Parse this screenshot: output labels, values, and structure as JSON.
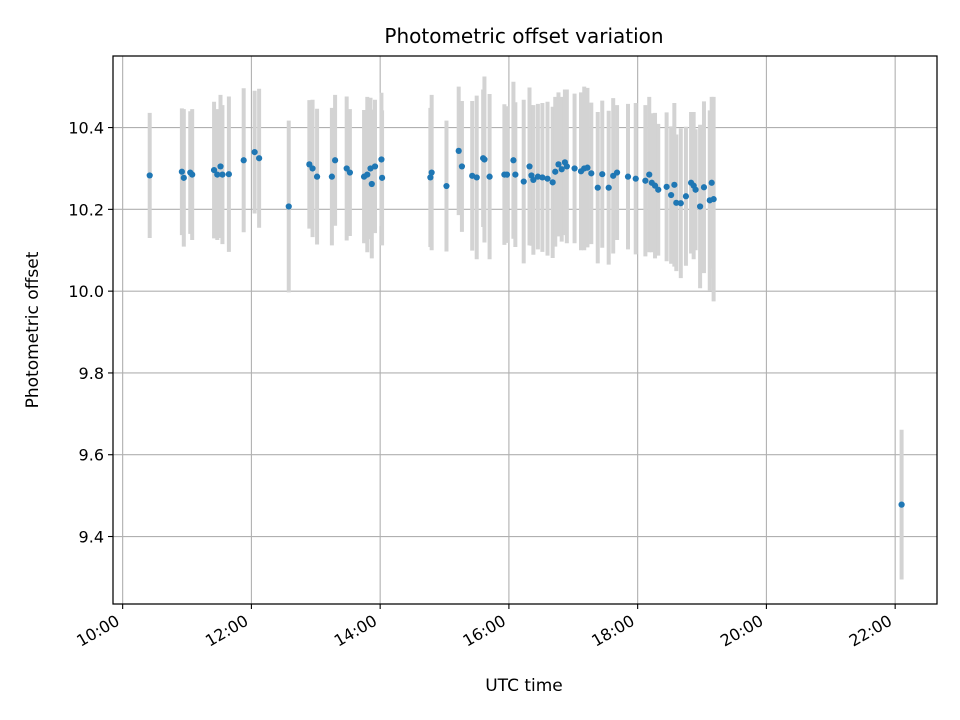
{
  "chart_data": {
    "type": "scatter",
    "title": "Photometric offset variation",
    "xlabel": "UTC time",
    "ylabel": "Photometric offset",
    "x_unit": "hours UTC",
    "xlim": [
      9.85,
      22.65
    ],
    "ylim": [
      9.235,
      10.575
    ],
    "x_ticks": [
      10,
      12,
      14,
      16,
      18,
      20,
      22
    ],
    "x_tick_labels": [
      "10:00",
      "12:00",
      "14:00",
      "16:00",
      "18:00",
      "20:00",
      "22:00"
    ],
    "y_ticks": [
      9.4,
      9.6,
      9.8,
      10.0,
      10.2,
      10.4
    ],
    "y_tick_labels": [
      "9.4",
      "9.6",
      "9.8",
      "10.0",
      "10.2",
      "10.4"
    ],
    "grid": true,
    "colors": {
      "points": "#1f77b4",
      "errorbars": "#d3d3d3",
      "grid": "#b0b0b0",
      "axes": "#000000"
    },
    "series": [
      {
        "x": [
          10.42,
          10.92,
          10.95,
          11.05,
          11.08,
          11.42,
          11.47,
          11.52,
          11.55,
          11.65,
          11.88,
          12.05,
          12.12,
          12.58,
          12.9,
          12.95,
          13.02,
          13.25,
          13.3,
          13.48,
          13.53,
          13.75,
          13.8,
          13.85,
          13.87,
          13.92,
          14.02,
          14.03,
          14.78,
          14.8,
          15.03,
          15.22,
          15.27,
          15.43,
          15.5,
          15.6,
          15.62,
          15.7,
          15.93,
          15.97,
          16.07,
          16.1,
          16.23,
          16.32,
          16.35,
          16.38,
          16.45,
          16.52,
          16.6,
          16.68,
          16.72,
          16.77,
          16.82,
          16.87,
          16.9,
          17.02,
          17.12,
          17.17,
          17.22,
          17.28,
          17.38,
          17.45,
          17.55,
          17.62,
          17.68,
          17.85,
          17.97,
          18.12,
          18.18,
          18.22,
          18.27,
          18.32,
          18.45,
          18.52,
          18.57,
          18.6,
          18.67,
          18.75,
          18.83,
          18.87,
          18.9,
          18.97,
          19.03,
          19.12,
          19.15,
          19.18,
          22.1
        ],
        "y": [
          10.283,
          10.292,
          10.277,
          10.29,
          10.285,
          10.296,
          10.285,
          10.305,
          10.285,
          10.286,
          10.32,
          10.34,
          10.325,
          10.207,
          10.31,
          10.3,
          10.28,
          10.28,
          10.32,
          10.3,
          10.29,
          10.28,
          10.285,
          10.3,
          10.262,
          10.305,
          10.322,
          10.277,
          10.278,
          10.29,
          10.257,
          10.343,
          10.305,
          10.282,
          10.278,
          10.325,
          10.322,
          10.28,
          10.285,
          10.285,
          10.32,
          10.285,
          10.268,
          10.305,
          10.283,
          10.272,
          10.28,
          10.278,
          10.275,
          10.266,
          10.292,
          10.31,
          10.298,
          10.315,
          10.305,
          10.3,
          10.293,
          10.3,
          10.302,
          10.288,
          10.253,
          10.286,
          10.253,
          10.282,
          10.29,
          10.28,
          10.275,
          10.27,
          10.285,
          10.265,
          10.258,
          10.248,
          10.255,
          10.235,
          10.26,
          10.216,
          10.215,
          10.232,
          10.265,
          10.258,
          10.248,
          10.207,
          10.254,
          10.222,
          10.265,
          10.225,
          9.478
        ],
        "yerr": [
          0.153,
          0.155,
          0.168,
          0.15,
          0.16,
          0.167,
          0.16,
          0.175,
          0.17,
          0.19,
          0.176,
          0.15,
          0.17,
          0.21,
          0.157,
          0.168,
          0.166,
          0.168,
          0.16,
          0.176,
          0.155,
          0.163,
          0.19,
          0.173,
          0.182,
          0.163,
          0.163,
          0.165,
          0.17,
          0.19,
          0.16,
          0.157,
          0.16,
          0.183,
          0.2,
          0.168,
          0.203,
          0.202,
          0.172,
          0.167,
          0.192,
          0.177,
          0.2,
          0.193,
          0.172,
          0.183,
          0.178,
          0.182,
          0.188,
          0.185,
          0.183,
          0.176,
          0.177,
          0.178,
          0.188,
          0.183,
          0.193,
          0.2,
          0.195,
          0.173,
          0.185,
          0.18,
          0.188,
          0.19,
          0.165,
          0.178,
          0.185,
          0.185,
          0.19,
          0.17,
          0.178,
          0.161,
          0.182,
          0.168,
          0.2,
          0.167,
          0.183,
          0.17,
          0.173,
          0.18,
          0.148,
          0.2,
          0.21,
          0.22,
          0.21,
          0.25,
          0.183
        ]
      }
    ]
  }
}
